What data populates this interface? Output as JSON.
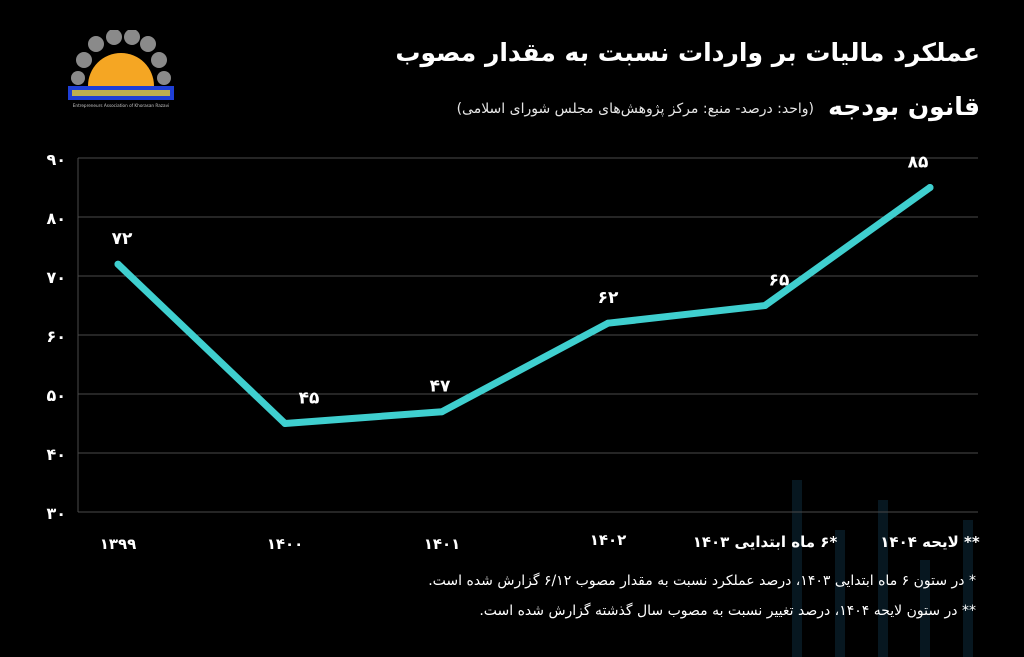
{
  "title": {
    "line1": "عملکرد مالیات بر واردات نسبت به مقدار مصوب",
    "line2": "قانون بودجه",
    "subtitle": "(واحد: درصد- منبع: مرکز پژوهش‌های مجلس شورای اسلامی)"
  },
  "logo": {
    "caption": "Entrepreneurs Association of Khorasan Razavi",
    "colors": {
      "sun": "#f5a623",
      "gears": "#8a8a8a",
      "banner": "#1f3fd6"
    }
  },
  "notes": {
    "note1": "* در ستون ۶ ماه ابتدایی ۱۴۰۳، درصد عملکرد نسبت به مقدار مصوب ۶/۱۲ گزارش شده است.",
    "note2": "** در ستون لایحه ۱۴۰۴، درصد تغییر نسبت به مصوب سال گذشته گزارش شده است."
  },
  "colors": {
    "line": "#3fcfcf",
    "grid": "#4a4a4a",
    "background": "#000000",
    "text": "#ffffff"
  },
  "chart_data": {
    "type": "line",
    "title": "عملکرد مالیات بر واردات نسبت به مقدار مصوب قانون بودجه",
    "xlabel": "",
    "ylabel": "",
    "categories": [
      "۱۳۹۹",
      "۱۴۰۰",
      "۱۴۰۱",
      "۱۴۰۲",
      "*۶ ماه ابتدایی ۱۴۰۳",
      "** لایحه ۱۴۰۴"
    ],
    "values": [
      72,
      45,
      47,
      62,
      65,
      85
    ],
    "value_labels": [
      "۷۲",
      "۴۵",
      "۴۷",
      "۶۲",
      "۶۵",
      "۸۵"
    ],
    "y_ticks": [
      30,
      40,
      50,
      60,
      70,
      80,
      90
    ],
    "y_tick_labels": [
      "۳۰",
      "۴۰",
      "۵۰",
      "۶۰",
      "۷۰",
      "۸۰",
      "۹۰"
    ],
    "ylim": [
      30,
      90
    ],
    "grid": true,
    "legend": "none"
  }
}
